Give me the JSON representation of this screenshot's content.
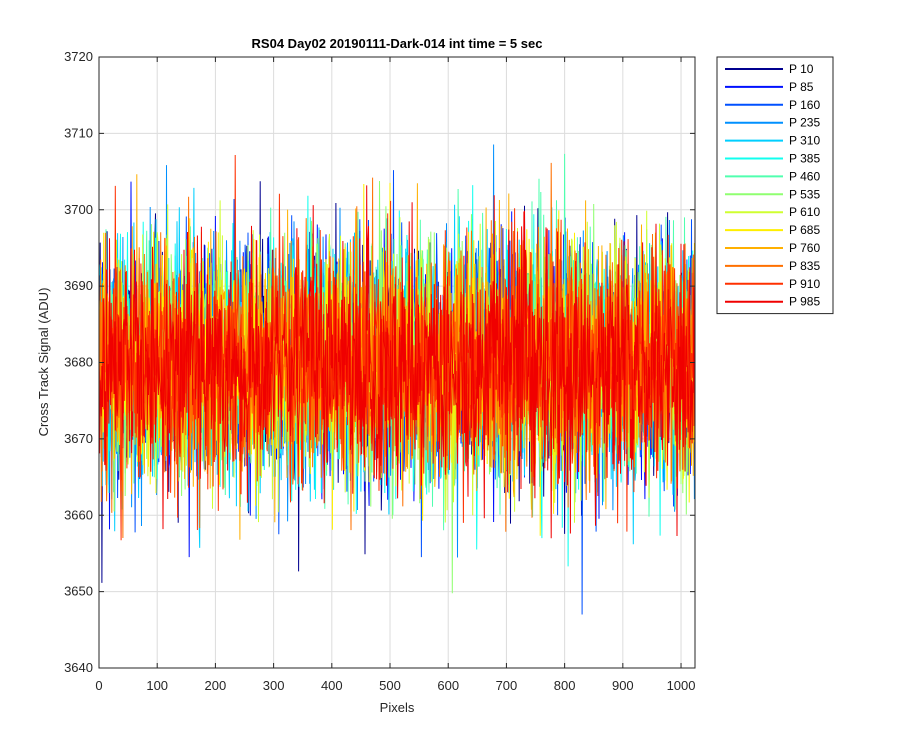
{
  "chart_data": {
    "type": "line",
    "title": "RS04 Day02 20190111-Dark-014 int time = 5 sec",
    "xlabel": "Pixels",
    "ylabel": "Cross Track Signal (ADU)",
    "xlim": [
      0,
      1024
    ],
    "ylim": [
      3640,
      3720
    ],
    "xticks": [
      0,
      100,
      200,
      300,
      400,
      500,
      600,
      700,
      800,
      900,
      1000
    ],
    "yticks": [
      3640,
      3650,
      3660,
      3670,
      3680,
      3690,
      3700,
      3710,
      3720
    ],
    "grid": true,
    "legend_position": "outside-top-right",
    "noise": {
      "mean": 3680,
      "std": 7.5,
      "min": 3647,
      "max": 3712,
      "samples_per_series": 1024
    },
    "series": [
      {
        "name": "P 10",
        "color": "#00008F"
      },
      {
        "name": "P 85",
        "color": "#0010FF"
      },
      {
        "name": "P 160",
        "color": "#0050FF"
      },
      {
        "name": "P 235",
        "color": "#0090FF"
      },
      {
        "name": "P 310",
        "color": "#00CFFF"
      },
      {
        "name": "P 385",
        "color": "#10FFEF"
      },
      {
        "name": "P 460",
        "color": "#50FFAF"
      },
      {
        "name": "P 535",
        "color": "#8FFF70"
      },
      {
        "name": "P 610",
        "color": "#CFFF30"
      },
      {
        "name": "P 685",
        "color": "#FFEF00"
      },
      {
        "name": "P 760",
        "color": "#FFB000"
      },
      {
        "name": "P 835",
        "color": "#FF7000"
      },
      {
        "name": "P 910",
        "color": "#FF3000"
      },
      {
        "name": "P 985",
        "color": "#F00000"
      }
    ]
  }
}
